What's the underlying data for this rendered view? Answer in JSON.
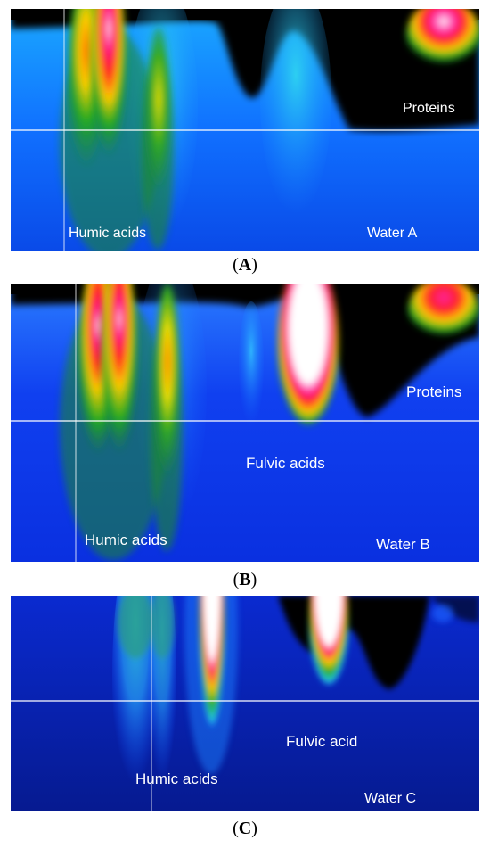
{
  "panels": [
    {
      "caption_letter": "A",
      "labels": {
        "humic": "Humic acids",
        "proteins": "Proteins",
        "water": "Water A"
      }
    },
    {
      "caption_letter": "B",
      "labels": {
        "humic": "Humic acids",
        "fulvic": "Fulvic acids",
        "proteins": "Proteins",
        "water": "Water B"
      }
    },
    {
      "caption_letter": "C",
      "labels": {
        "humic": "Humic acids",
        "fulvic": "Fulvic acid",
        "water": "Water C"
      }
    }
  ],
  "colors": {
    "background_blue": "#0a3fe0",
    "dark_blue": "#071a8a",
    "cyan": "#22ccee",
    "green": "#1a8a2a",
    "yellow": "#f0e000",
    "red": "#ff1a1a",
    "white": "#ffffff",
    "black": "#000000"
  }
}
